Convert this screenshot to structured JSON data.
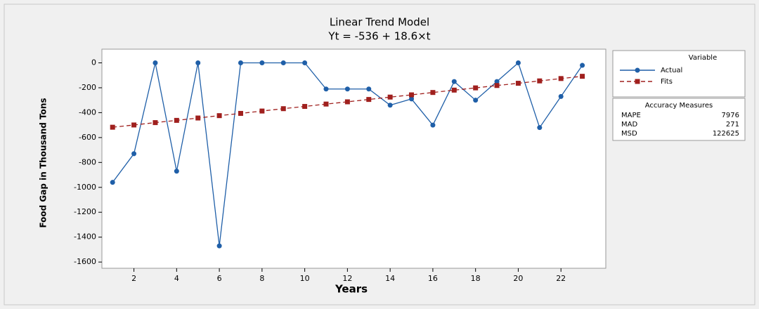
{
  "chart_data": {
    "type": "line",
    "title": "Linear Trend Model",
    "subtitle": "Yt = -536 + 18.6×t",
    "x_label": "Years",
    "y_label": "Food Gap in Thousand Tons",
    "x": [
      1,
      2,
      3,
      4,
      5,
      6,
      7,
      8,
      9,
      10,
      11,
      12,
      13,
      14,
      15,
      16,
      17,
      18,
      19,
      20,
      21,
      22,
      23
    ],
    "series": [
      {
        "name": "Actual",
        "color": "#1f5fa8",
        "marker": "circle",
        "values": [
          -960,
          -730,
          0,
          -870,
          0,
          -1470,
          0,
          0,
          0,
          0,
          -210,
          -210,
          -210,
          -340,
          -290,
          -500,
          -150,
          -300,
          -150,
          0,
          -520,
          -270,
          -20
        ]
      },
      {
        "name": "Fits",
        "color": "#a0201e",
        "marker": "square",
        "dashed": true,
        "values": [
          -517,
          -499,
          -480,
          -462,
          -443,
          -424,
          -406,
          -387,
          -368,
          -350,
          -331,
          -313,
          -294,
          -275,
          -257,
          -238,
          -219,
          -201,
          -182,
          -164,
          -145,
          -126,
          -108
        ]
      }
    ],
    "legend_title": "Variable",
    "accuracy_measures": {
      "title": "Accuracy Measures",
      "rows": [
        {
          "name": "MAPE",
          "value": 7976
        },
        {
          "name": "MAD",
          "value": 271
        },
        {
          "name": "MSD",
          "value": 122625
        }
      ]
    },
    "xlim": [
      0.5,
      24.1
    ],
    "ylim": [
      -1650,
      110
    ],
    "xticks": [
      2,
      4,
      6,
      8,
      10,
      12,
      14,
      16,
      18,
      20,
      22
    ],
    "yticks": [
      0,
      -200,
      -400,
      -600,
      -800,
      -1000,
      -1200,
      -1400,
      -1600
    ]
  }
}
